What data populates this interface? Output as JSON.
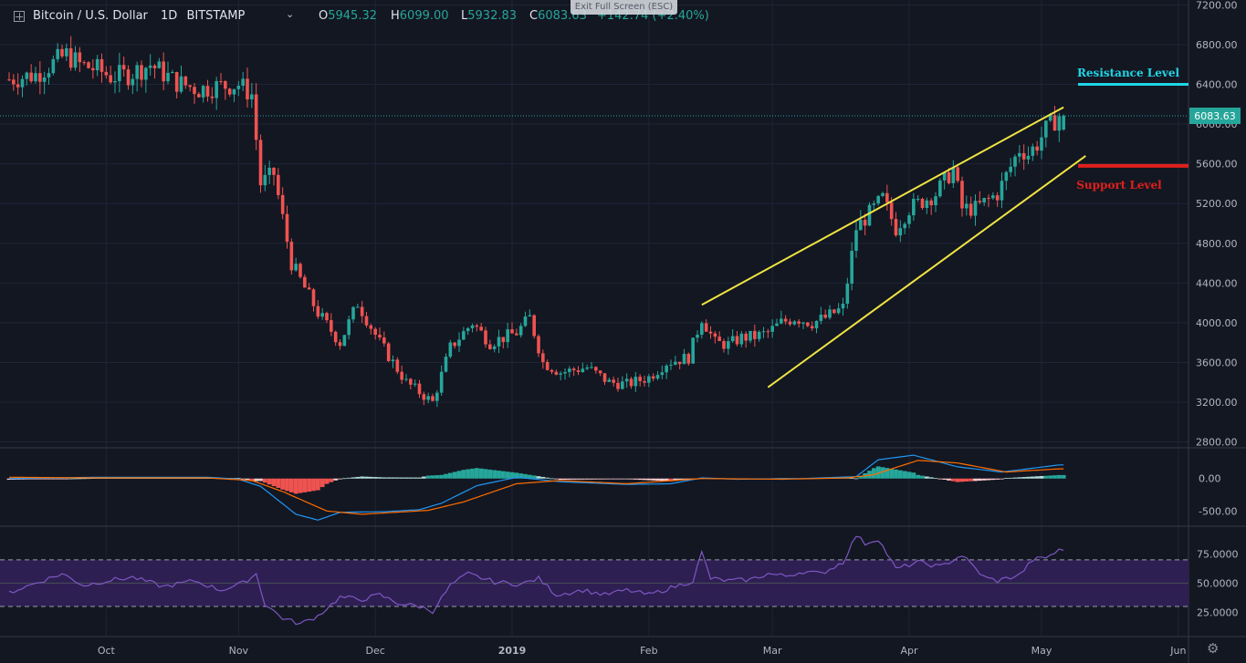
{
  "header": {
    "symbol_title": "Bitcoin / U.S. Dollar",
    "interval": "1D",
    "exchange": "BITSTAMP",
    "ohlc": {
      "open_label": "O",
      "open": "5945.32",
      "high_label": "H",
      "high": "6099.00",
      "low_label": "L",
      "low": "5932.83",
      "close_label": "C",
      "close": "6083.63",
      "change": "+142.74 (+2.40%)"
    },
    "exit_fullscreen": "Exit Full Screen (ESC)",
    "add_icon": "plus-square-icon",
    "settings_icon": "gear-icon"
  },
  "colors": {
    "background": "#131722",
    "up": "#26a69a",
    "down": "#ef5350",
    "grid": "#1f2536",
    "axis_text": "#b2b5be",
    "wedge": "#f0e442",
    "resistance": "#1fd6e6",
    "support": "#e0201c",
    "macd_line": "#2196f3",
    "signal_line": "#ff6d00",
    "rsi_line": "#7e57c2",
    "rsi_band": "#2e1f52"
  },
  "chart_data": [
    {
      "type": "candlestick",
      "title": "Bitcoin / U.S. Dollar",
      "interval": "1D",
      "price_axis_ticks": [
        "7200.00",
        "6800.00",
        "6400.00",
        "6000.00",
        "5600.00",
        "5200.00",
        "4800.00",
        "4400.00",
        "4000.00",
        "3600.00",
        "3200.00",
        "2800.00"
      ],
      "time_axis_labels": [
        "Oct",
        "Nov",
        "Dec",
        "2019",
        "Feb",
        "Mar",
        "Apr",
        "May",
        "Jun"
      ],
      "ylim": [
        2750,
        7250
      ],
      "last_price_label": "6083.63",
      "last_price": 6083.63,
      "anchors": {
        "x": [
          0,
          6,
          13,
          16,
          20,
          23,
          27,
          32,
          38,
          43,
          47,
          52,
          55,
          57,
          60,
          64,
          70,
          75,
          79,
          84,
          87,
          90,
          93,
          96,
          100,
          105,
          109,
          115,
          118,
          121,
          125,
          131,
          136,
          140,
          145,
          149,
          154,
          157,
          160,
          163,
          166,
          169,
          172,
          175,
          178,
          182,
          185,
          189,
          192,
          195,
          198,
          201,
          204,
          206,
          210,
          214,
          216,
          219,
          224,
          229,
          231,
          233,
          235,
          238
        ],
        "close": [
          6450,
          6500,
          6700,
          6600,
          6550,
          6480,
          6500,
          6600,
          6420,
          6350,
          6380,
          6400,
          6300,
          5400,
          5500,
          4600,
          4100,
          3800,
          4200,
          3800,
          3600,
          3400,
          3300,
          3200,
          3750,
          4000,
          3800,
          3900,
          4050,
          3600,
          3500,
          3550,
          3400,
          3380,
          3450,
          3600,
          3650,
          4050,
          3800,
          3780,
          3850,
          3860,
          3900,
          4000,
          4050,
          4000,
          4050,
          4150,
          4950,
          5100,
          5250,
          4950,
          5150,
          5200,
          5300,
          5550,
          5150,
          5150,
          5300,
          5750,
          5700,
          5800,
          5945,
          6083.63
        ]
      },
      "annotations": [
        {
          "label": "Resistance Level",
          "price": 6400
        },
        {
          "label": "Support Level",
          "price": 5580
        }
      ],
      "trendlines": [
        {
          "name": "rising wedge upper",
          "from": {
            "day": 157,
            "price": 4180
          },
          "to": {
            "day": 239,
            "price": 6170
          }
        },
        {
          "name": "rising wedge lower",
          "from": {
            "day": 172,
            "price": 3350
          },
          "to": {
            "day": 244,
            "price": 5680
          }
        }
      ]
    },
    {
      "type": "line",
      "name": "MACD",
      "axis_ticks": [
        "0.00",
        "-500.00"
      ],
      "ylim": [
        -720,
        460
      ],
      "series": [
        {
          "name": "macd",
          "anchors_x": [
            0,
            20,
            45,
            52,
            57,
            65,
            70,
            75,
            85,
            93,
            98,
            106,
            115,
            125,
            140,
            150,
            157,
            165,
            180,
            192,
            197,
            205,
            215,
            225,
            238
          ],
          "anchors_y": [
            0,
            20,
            20,
            -10,
            -120,
            -550,
            -640,
            -520,
            -510,
            -480,
            -380,
            -110,
            20,
            -50,
            -90,
            -80,
            10,
            -10,
            0,
            30,
            290,
            360,
            180,
            100,
            210
          ]
        },
        {
          "name": "signal",
          "anchors_x": [
            0,
            20,
            45,
            55,
            62,
            72,
            80,
            95,
            103,
            115,
            125,
            140,
            157,
            175,
            190,
            196,
            206,
            215,
            226,
            238
          ],
          "anchors_y": [
            20,
            10,
            10,
            -30,
            -200,
            -500,
            -550,
            -490,
            -360,
            -80,
            -30,
            -80,
            0,
            -10,
            10,
            60,
            280,
            240,
            100,
            150
          ]
        }
      ]
    },
    {
      "type": "line",
      "name": "RSI",
      "axis_ticks": [
        "75.0000",
        "50.0000",
        "25.0000"
      ],
      "ylim": [
        5,
        98
      ],
      "band": [
        30,
        70
      ],
      "series": [
        {
          "name": "rsi",
          "anchors_x": [
            0,
            6,
            12,
            17,
            22,
            28,
            35,
            42,
            48,
            53,
            56,
            58,
            62,
            66,
            70,
            75,
            80,
            84,
            88,
            93,
            96,
            100,
            104,
            110,
            116,
            120,
            124,
            130,
            135,
            140,
            145,
            150,
            155,
            157,
            159,
            163,
            168,
            172,
            176,
            180,
            184,
            189,
            192,
            194,
            197,
            201,
            206,
            211,
            216,
            221,
            224,
            229,
            232,
            235,
            238
          ],
          "anchors_y": [
            42,
            50,
            58,
            48,
            52,
            55,
            47,
            52,
            44,
            50,
            58,
            32,
            20,
            15,
            22,
            38,
            36,
            40,
            33,
            30,
            26,
            48,
            58,
            51,
            49,
            54,
            40,
            44,
            40,
            44,
            40,
            46,
            52,
            76,
            54,
            52,
            53,
            58,
            56,
            60,
            58,
            68,
            91,
            84,
            88,
            62,
            68,
            64,
            74,
            55,
            52,
            57,
            70,
            72,
            78
          ]
        }
      ]
    }
  ]
}
